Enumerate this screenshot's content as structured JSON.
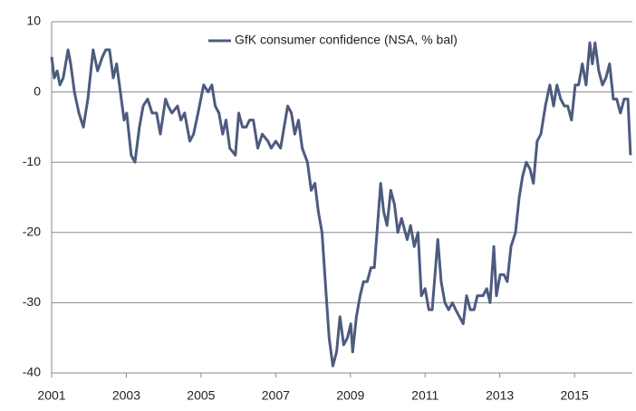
{
  "chart_data": {
    "type": "line",
    "x": [
      2001.0,
      2001.07,
      2001.15,
      2001.22,
      2001.31,
      2001.44,
      2001.51,
      2001.61,
      2001.73,
      2001.85,
      2001.97,
      2002.11,
      2002.23,
      2002.36,
      2002.45,
      2002.55,
      2002.65,
      2002.74,
      2002.84,
      2002.94,
      2003.01,
      2003.13,
      2003.23,
      2003.35,
      2003.45,
      2003.57,
      2003.69,
      2003.81,
      2003.91,
      2004.05,
      2004.12,
      2004.22,
      2004.37,
      2004.46,
      2004.56,
      2004.7,
      2004.8,
      2004.92,
      2005.07,
      2005.19,
      2005.29,
      2005.38,
      2005.48,
      2005.58,
      2005.67,
      2005.77,
      2005.92,
      2006.01,
      2006.11,
      2006.21,
      2006.3,
      2006.4,
      2006.52,
      2006.64,
      2006.79,
      2006.88,
      2007.0,
      2007.13,
      2007.32,
      2007.42,
      2007.51,
      2007.61,
      2007.71,
      2007.85,
      2007.95,
      2008.05,
      2008.14,
      2008.24,
      2008.34,
      2008.43,
      2008.53,
      2008.63,
      2008.72,
      2008.82,
      2008.92,
      2009.01,
      2009.06,
      2009.16,
      2009.26,
      2009.35,
      2009.45,
      2009.55,
      2009.64,
      2009.74,
      2009.81,
      2009.89,
      2009.98,
      2010.08,
      2010.18,
      2010.27,
      2010.37,
      2010.52,
      2010.61,
      2010.71,
      2010.81,
      2010.9,
      2011.0,
      2011.1,
      2011.19,
      2011.34,
      2011.43,
      2011.53,
      2011.63,
      2011.73,
      2011.82,
      2011.92,
      2012.02,
      2012.11,
      2012.21,
      2012.31,
      2012.4,
      2012.55,
      2012.65,
      2012.74,
      2012.84,
      2012.91,
      2013.01,
      2013.11,
      2013.2,
      2013.3,
      2013.42,
      2013.52,
      2013.61,
      2013.71,
      2013.81,
      2013.9,
      2014.0,
      2014.1,
      2014.22,
      2014.34,
      2014.44,
      2014.53,
      2014.63,
      2014.73,
      2014.82,
      2014.92,
      2015.02,
      2015.11,
      2015.21,
      2015.31,
      2015.41,
      2015.48,
      2015.55,
      2015.65,
      2015.75,
      2015.84,
      2015.94,
      2016.04,
      2016.13,
      2016.23,
      2016.33,
      2016.43,
      2016.5
    ],
    "series": [
      {
        "name": "GfK consumer confidence (NSA, % bal)",
        "color": "#4d5b7f",
        "values": [
          5,
          2,
          3,
          1,
          2,
          6,
          4,
          0,
          -3,
          -5,
          -1,
          6,
          3,
          5,
          6,
          6,
          2,
          4,
          0,
          -4,
          -3,
          -9,
          -10,
          -5,
          -2,
          -1,
          -3,
          -3,
          -6,
          -1,
          -2,
          -3,
          -2,
          -4,
          -3,
          -7,
          -6,
          -3,
          1,
          0,
          1,
          -2,
          -3,
          -6,
          -4,
          -8,
          -9,
          -3,
          -5,
          -5,
          -4,
          -4,
          -8,
          -6,
          -7,
          -8,
          -7,
          -8,
          -2,
          -3,
          -6,
          -4,
          -8,
          -10,
          -14,
          -13,
          -17,
          -20,
          -28,
          -35,
          -39,
          -37,
          -32,
          -36,
          -35,
          -33,
          -37,
          -32,
          -29,
          -27,
          -27,
          -25,
          -25,
          -18,
          -13,
          -17,
          -19,
          -14,
          -16,
          -20,
          -18,
          -21,
          -19,
          -22,
          -20,
          -29,
          -28,
          -31,
          -31,
          -21,
          -27,
          -30,
          -31,
          -30,
          -31,
          -32,
          -33,
          -29,
          -31,
          -31,
          -29,
          -29,
          -28,
          -30,
          -22,
          -29,
          -26,
          -26,
          -27,
          -22,
          -20,
          -15,
          -12,
          -10,
          -11,
          -13,
          -7,
          -6,
          -2,
          1,
          -2,
          1,
          -1,
          -2,
          -2,
          -4,
          1,
          1,
          4,
          1,
          7,
          4,
          7,
          3,
          1,
          2,
          4,
          -1,
          -1,
          -3,
          -1,
          -1,
          -9
        ]
      }
    ],
    "xlim": [
      2001,
      2016.55
    ],
    "xticks": [
      2001,
      2003,
      2005,
      2007,
      2009,
      2011,
      2013,
      2015
    ],
    "ylim": [
      -40,
      10
    ],
    "yticks": [
      -40,
      -30,
      -20,
      -10,
      0,
      10
    ],
    "grid": true
  }
}
